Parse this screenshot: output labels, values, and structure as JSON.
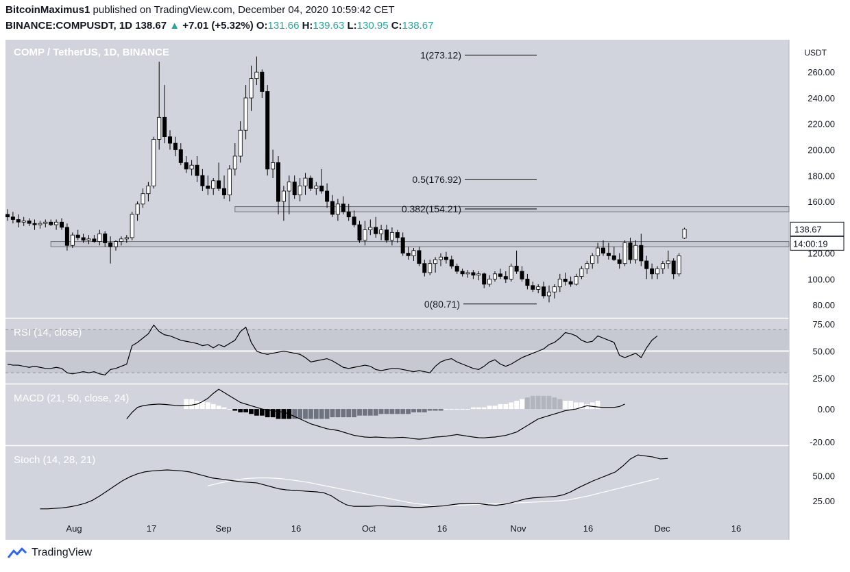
{
  "header": {
    "author": "BitcoinMaximus1",
    "published_text": "published on TradingView.com, December 04, 2020 10:59:42 CET",
    "symbol": "BINANCE:COMPUSDT, 1D",
    "last": "138.67",
    "change": "+7.01 (+5.32%)",
    "o_label": "O:",
    "o_value": "131.66",
    "h_label": "H:",
    "h_value": "139.63",
    "l_label": "L:",
    "l_value": "130.95",
    "c_label": "C:",
    "c_value": "138.67"
  },
  "footer": {
    "brand": "TradingView"
  },
  "colors": {
    "bg": "#d1d4dc",
    "up_arrow": "#26a69a",
    "candle": "#000000",
    "candle_up_fill": "#ffffff"
  },
  "chart_data": [
    {
      "type": "candlestick",
      "title": "COMP / TetherUS, 1D, BINANCE",
      "ylabel": "USDT",
      "ylim": [
        70,
        285
      ],
      "y_ticks": [
        "260.00",
        "240.00",
        "220.00",
        "200.00",
        "180.00",
        "160.00",
        "140.00",
        "120.00",
        "100.00",
        "80.00"
      ],
      "x_ticks": [
        "Aug",
        "17",
        "Sep",
        "16",
        "Oct",
        "16",
        "Nov",
        "16",
        "Dec",
        "16"
      ],
      "last_price_label": "138.67",
      "countdown_label": "14:00:19",
      "fib_levels": [
        {
          "label": "1(273.12)",
          "value": 273.12
        },
        {
          "label": "0.5(176.92)",
          "value": 176.92
        },
        {
          "label": "0.382(154.21)",
          "value": 154.21
        },
        {
          "label": "0(80.71)",
          "value": 80.71
        }
      ],
      "zones": [
        [
          152,
          156
        ],
        [
          125,
          129
        ]
      ],
      "candles": [
        [
          150,
          154,
          145,
          148
        ],
        [
          148,
          152,
          143,
          146
        ],
        [
          146,
          150,
          140,
          144
        ],
        [
          144,
          148,
          141,
          145
        ],
        [
          145,
          147,
          141,
          143
        ],
        [
          143,
          146,
          138,
          142
        ],
        [
          142,
          145,
          139,
          143
        ],
        [
          143,
          146,
          140,
          144
        ],
        [
          144,
          146,
          141,
          142
        ],
        [
          142,
          146,
          138,
          144
        ],
        [
          144,
          147,
          138,
          140
        ],
        [
          140,
          143,
          122,
          126
        ],
        [
          126,
          136,
          124,
          134
        ],
        [
          134,
          138,
          130,
          132
        ],
        [
          132,
          135,
          128,
          130
        ],
        [
          130,
          134,
          127,
          131
        ],
        [
          131,
          134,
          128,
          129
        ],
        [
          129,
          138,
          126,
          135
        ],
        [
          135,
          137,
          125,
          128
        ],
        [
          128,
          133,
          112,
          125
        ],
        [
          125,
          130,
          122,
          129
        ],
        [
          129,
          133,
          126,
          131
        ],
        [
          131,
          134,
          128,
          132
        ],
        [
          132,
          152,
          130,
          150
        ],
        [
          150,
          160,
          145,
          158
        ],
        [
          158,
          170,
          155,
          166
        ],
        [
          166,
          175,
          160,
          172
        ],
        [
          172,
          210,
          170,
          208
        ],
        [
          208,
          268,
          200,
          225
        ],
        [
          225,
          250,
          205,
          210
        ],
        [
          210,
          215,
          200,
          205
        ],
        [
          205,
          210,
          195,
          200
        ],
        [
          200,
          205,
          188,
          190
        ],
        [
          190,
          195,
          182,
          185
        ],
        [
          185,
          192,
          180,
          188
        ],
        [
          188,
          195,
          175,
          180
        ],
        [
          180,
          185,
          168,
          172
        ],
        [
          172,
          180,
          165,
          170
        ],
        [
          170,
          178,
          165,
          176
        ],
        [
          176,
          190,
          168,
          170
        ],
        [
          170,
          180,
          162,
          165
        ],
        [
          165,
          188,
          160,
          185
        ],
        [
          185,
          205,
          180,
          195
        ],
        [
          195,
          222,
          190,
          215
        ],
        [
          215,
          250,
          208,
          240
        ],
        [
          240,
          265,
          230,
          255
        ],
        [
          255,
          272,
          250,
          260
        ],
        [
          260,
          262,
          240,
          245
        ],
        [
          245,
          250,
          180,
          185
        ],
        [
          185,
          200,
          178,
          190
        ],
        [
          190,
          195,
          150,
          160
        ],
        [
          160,
          172,
          145,
          168
        ],
        [
          168,
          180,
          150,
          175
        ],
        [
          175,
          180,
          162,
          165
        ],
        [
          165,
          178,
          160,
          172
        ],
        [
          172,
          182,
          165,
          178
        ],
        [
          178,
          180,
          168,
          170
        ],
        [
          170,
          175,
          165,
          172
        ],
        [
          172,
          185,
          166,
          168
        ],
        [
          168,
          174,
          155,
          160
        ],
        [
          160,
          165,
          148,
          150
        ],
        [
          150,
          162,
          145,
          158
        ],
        [
          158,
          164,
          150,
          152
        ],
        [
          152,
          158,
          145,
          148
        ],
        [
          148,
          153,
          140,
          142
        ],
        [
          142,
          145,
          128,
          130
        ],
        [
          130,
          145,
          126,
          138
        ],
        [
          138,
          146,
          134,
          140
        ],
        [
          140,
          148,
          132,
          135
        ],
        [
          135,
          142,
          130,
          138
        ],
        [
          138,
          142,
          128,
          130
        ],
        [
          130,
          140,
          126,
          136
        ],
        [
          136,
          138,
          128,
          132
        ],
        [
          132,
          136,
          118,
          120
        ],
        [
          120,
          125,
          115,
          118
        ],
        [
          118,
          124,
          114,
          122
        ],
        [
          122,
          125,
          110,
          112
        ],
        [
          112,
          115,
          102,
          105
        ],
        [
          105,
          115,
          103,
          112
        ],
        [
          112,
          117,
          105,
          115
        ],
        [
          115,
          120,
          110,
          117
        ],
        [
          117,
          121,
          112,
          115
        ],
        [
          115,
          118,
          108,
          110
        ],
        [
          110,
          112,
          104,
          106
        ],
        [
          106,
          108,
          102,
          104
        ],
        [
          104,
          107,
          101,
          105
        ],
        [
          105,
          107,
          100,
          103
        ],
        [
          103,
          106,
          99,
          104
        ],
        [
          104,
          105,
          93,
          96
        ],
        [
          96,
          103,
          94,
          100
        ],
        [
          100,
          106,
          98,
          104
        ],
        [
          104,
          108,
          100,
          102
        ],
        [
          102,
          106,
          97,
          100
        ],
        [
          100,
          112,
          98,
          110
        ],
        [
          110,
          122,
          104,
          106
        ],
        [
          106,
          110,
          98,
          100
        ],
        [
          100,
          104,
          92,
          95
        ],
        [
          95,
          98,
          90,
          92
        ],
        [
          92,
          96,
          89,
          94
        ],
        [
          94,
          98,
          85,
          87
        ],
        [
          87,
          95,
          82,
          90
        ],
        [
          90,
          96,
          85,
          94
        ],
        [
          94,
          104,
          90,
          100
        ],
        [
          100,
          105,
          95,
          98
        ],
        [
          98,
          102,
          94,
          96
        ],
        [
          96,
          104,
          95,
          102
        ],
        [
          102,
          110,
          100,
          108
        ],
        [
          108,
          114,
          104,
          112
        ],
        [
          112,
          120,
          108,
          118
        ],
        [
          118,
          128,
          112,
          124
        ],
        [
          124,
          130,
          118,
          120
        ],
        [
          120,
          128,
          115,
          118
        ],
        [
          118,
          125,
          114,
          115
        ],
        [
          115,
          120,
          108,
          112
        ],
        [
          112,
          130,
          110,
          128
        ],
        [
          128,
          132,
          112,
          115
        ],
        [
          115,
          130,
          112,
          126
        ],
        [
          126,
          135,
          110,
          114
        ],
        [
          114,
          118,
          100,
          108
        ],
        [
          108,
          112,
          100,
          104
        ],
        [
          104,
          110,
          100,
          108
        ],
        [
          108,
          114,
          104,
          112
        ],
        [
          112,
          122,
          108,
          114
        ],
        [
          114,
          116,
          100,
          104
        ],
        [
          104,
          120,
          102,
          118
        ],
        [
          131.66,
          139.63,
          130.95,
          138.67
        ]
      ]
    },
    {
      "type": "line",
      "title": "RSI (14, close)",
      "ylim": [
        20,
        80
      ],
      "y_ticks": [
        "75.00",
        "50.00",
        "25.00"
      ],
      "band": [
        30,
        70
      ],
      "values": [
        38,
        37,
        37,
        36,
        35,
        36,
        35,
        34,
        34,
        35,
        34,
        30,
        29,
        30,
        31,
        30,
        31,
        29,
        28,
        33,
        34,
        36,
        38,
        55,
        58,
        62,
        66,
        74,
        68,
        65,
        64,
        62,
        60,
        59,
        58,
        57,
        55,
        56,
        53,
        56,
        54,
        57,
        60,
        68,
        72,
        58,
        50,
        48,
        47,
        48,
        49,
        50,
        49,
        48,
        47,
        44,
        40,
        41,
        42,
        43,
        41,
        38,
        35,
        34,
        35,
        36,
        37,
        36,
        33,
        32,
        33,
        34,
        34,
        33,
        32,
        31,
        32,
        31,
        30,
        36,
        40,
        42,
        43,
        40,
        38,
        36,
        34,
        33,
        36,
        40,
        42,
        38,
        36,
        38,
        41,
        44,
        46,
        48,
        50,
        52,
        56,
        58,
        62,
        67,
        66,
        64,
        60,
        58,
        59,
        64,
        62,
        60,
        58,
        46,
        44,
        46,
        48,
        44,
        53,
        60,
        64
      ],
      "x_start": 0
    },
    {
      "type": "line+histogram",
      "title": "MACD (21, 50, close, 24)",
      "ylim": [
        -22,
        15
      ],
      "y_ticks": [
        "0.00",
        "-20.00"
      ],
      "macd_start": 22,
      "macd": [
        -6,
        -2,
        1,
        2,
        2.5,
        2.8,
        3,
        2.8,
        2.5,
        2.2,
        2,
        2.2,
        2.4,
        3,
        4.5,
        6.5,
        9.5,
        12,
        10,
        8,
        6,
        4,
        3,
        2,
        1,
        0,
        -0.5,
        -1,
        -1.5,
        -2,
        -3,
        -4.5,
        -6,
        -7.5,
        -9,
        -10,
        -11,
        -12,
        -12.5,
        -13,
        -14,
        -15,
        -16,
        -16.5,
        -17,
        -17.2,
        -17,
        -17.2,
        -17.4,
        -17.5,
        -17.3,
        -17.2,
        -17.5,
        -18,
        -18.3,
        -18,
        -17.5,
        -17,
        -16.8,
        -16.5,
        -16,
        -15.5,
        -16,
        -16.5,
        -17,
        -17.4,
        -17.5,
        -17.2,
        -17,
        -16.5,
        -16,
        -15,
        -14,
        -12,
        -10,
        -8,
        -6,
        -5,
        -4,
        -3,
        -2,
        -1,
        -0.5,
        0,
        1,
        2,
        1.6,
        1.2,
        1,
        1,
        1,
        1.5,
        3
      ],
      "hist_start": 33,
      "hist": [
        6,
        6,
        5,
        5,
        4,
        3,
        2,
        1,
        0,
        -1,
        -2,
        -2,
        -3,
        -4,
        -4,
        -5,
        -5,
        -6,
        -6,
        -6,
        -6,
        -6,
        -6,
        -6,
        -6,
        -6,
        -6,
        -5,
        -5,
        -5,
        -5,
        -5,
        -4,
        -4,
        -4,
        -4,
        -3,
        -3,
        -3,
        -3,
        -3,
        -3,
        -2,
        -2,
        -2,
        -1,
        -1,
        -1,
        0,
        0,
        0,
        0,
        0,
        1,
        1,
        1,
        2,
        2,
        3,
        3,
        4,
        5,
        6,
        7,
        8,
        8,
        8,
        8,
        7,
        6,
        5,
        5,
        4,
        4,
        3,
        4,
        5
      ]
    },
    {
      "type": "line",
      "title": "Stoch (14, 28, 21)",
      "ylim": [
        10,
        80
      ],
      "y_ticks": [
        "50.00",
        "25.00"
      ],
      "k_start": 6,
      "k": [
        17,
        17,
        17.5,
        18,
        19,
        20.5,
        22.5,
        25.5,
        30,
        35,
        40,
        45,
        49,
        52,
        54,
        55,
        55.5,
        56,
        55.5,
        55,
        54,
        52,
        50,
        48,
        47,
        46,
        45,
        44,
        43.5,
        43,
        41,
        39,
        37,
        36,
        35.5,
        35,
        34.5,
        34,
        33,
        30,
        25,
        21,
        19.5,
        19.5,
        19.5,
        20,
        20,
        19.5,
        19.5,
        19,
        18.5,
        18.5,
        19,
        19.5,
        20,
        21,
        22,
        22.5,
        22.5,
        22,
        21,
        20.5,
        21.5,
        23,
        25,
        27,
        28,
        28.5,
        29,
        29.5,
        31,
        34,
        38,
        41.5,
        45,
        48,
        51,
        54,
        60,
        67,
        71,
        70,
        69,
        67,
        67.5
      ],
      "d_start": 37,
      "d": [
        40,
        42.5,
        44.5,
        46.5,
        47.5,
        48,
        48,
        47.5,
        46.5,
        45,
        43.5,
        41.5,
        39.5,
        37.5,
        35.5,
        33.5,
        31.5,
        29.5,
        27.5,
        25.5,
        23.5,
        22,
        21,
        20,
        20,
        20.5,
        21,
        21.5,
        22,
        22.5,
        22.8,
        23,
        23.5,
        24,
        24.5,
        25,
        26,
        28,
        30,
        32.5,
        35,
        37.5,
        40,
        42.5,
        45,
        47.5
      ]
    }
  ]
}
